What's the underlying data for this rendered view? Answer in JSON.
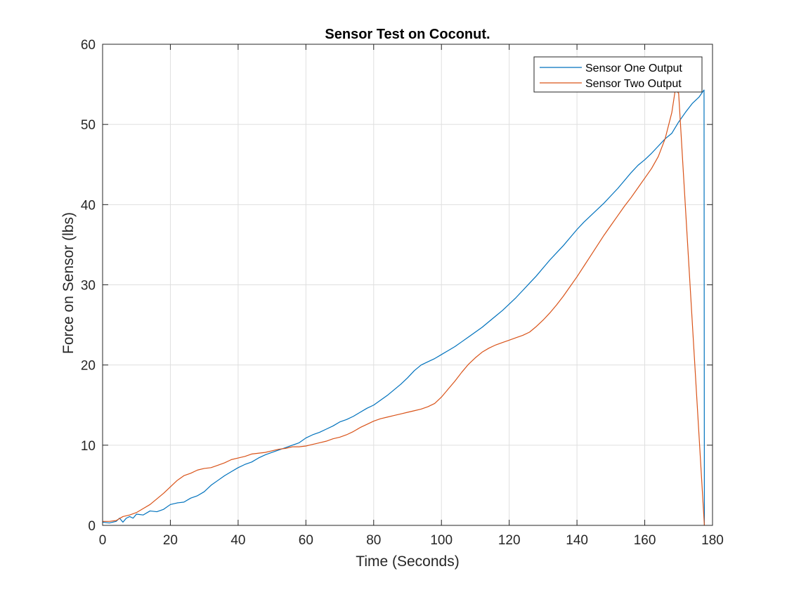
{
  "chart_data": {
    "type": "line",
    "title": "Sensor Test on Coconut.",
    "xlabel": "Time (Seconds)",
    "ylabel": "Force on Sensor (lbs)",
    "xlim": [
      0,
      180
    ],
    "ylim": [
      0,
      60
    ],
    "xticks": [
      0,
      20,
      40,
      60,
      80,
      100,
      120,
      140,
      160,
      180
    ],
    "yticks": [
      0,
      10,
      20,
      30,
      40,
      50,
      60
    ],
    "grid": true,
    "legend_position": "top-right",
    "series": [
      {
        "name": "Sensor One Output",
        "color": "#0072BD",
        "points": [
          [
            0,
            0.4
          ],
          [
            2,
            0.3
          ],
          [
            4,
            0.5
          ],
          [
            5,
            0.9
          ],
          [
            6,
            0.4
          ],
          [
            7,
            0.9
          ],
          [
            8,
            1.1
          ],
          [
            9,
            0.9
          ],
          [
            10,
            1.4
          ],
          [
            12,
            1.3
          ],
          [
            14,
            1.8
          ],
          [
            16,
            1.7
          ],
          [
            18,
            2.0
          ],
          [
            20,
            2.6
          ],
          [
            22,
            2.8
          ],
          [
            24,
            2.9
          ],
          [
            26,
            3.4
          ],
          [
            28,
            3.7
          ],
          [
            30,
            4.2
          ],
          [
            32,
            5.0
          ],
          [
            34,
            5.6
          ],
          [
            36,
            6.2
          ],
          [
            38,
            6.7
          ],
          [
            40,
            7.2
          ],
          [
            42,
            7.6
          ],
          [
            44,
            7.9
          ],
          [
            46,
            8.4
          ],
          [
            48,
            8.8
          ],
          [
            50,
            9.1
          ],
          [
            52,
            9.4
          ],
          [
            54,
            9.7
          ],
          [
            56,
            10.0
          ],
          [
            58,
            10.3
          ],
          [
            60,
            10.9
          ],
          [
            62,
            11.3
          ],
          [
            64,
            11.6
          ],
          [
            66,
            12.0
          ],
          [
            68,
            12.4
          ],
          [
            70,
            12.9
          ],
          [
            72,
            13.2
          ],
          [
            74,
            13.6
          ],
          [
            76,
            14.1
          ],
          [
            78,
            14.6
          ],
          [
            80,
            15.0
          ],
          [
            82,
            15.6
          ],
          [
            84,
            16.2
          ],
          [
            86,
            16.9
          ],
          [
            88,
            17.6
          ],
          [
            90,
            18.4
          ],
          [
            92,
            19.3
          ],
          [
            94,
            20.0
          ],
          [
            96,
            20.4
          ],
          [
            98,
            20.8
          ],
          [
            100,
            21.3
          ],
          [
            102,
            21.8
          ],
          [
            104,
            22.3
          ],
          [
            106,
            22.9
          ],
          [
            108,
            23.5
          ],
          [
            110,
            24.1
          ],
          [
            112,
            24.7
          ],
          [
            114,
            25.4
          ],
          [
            116,
            26.1
          ],
          [
            118,
            26.8
          ],
          [
            120,
            27.6
          ],
          [
            122,
            28.4
          ],
          [
            124,
            29.3
          ],
          [
            126,
            30.2
          ],
          [
            128,
            31.1
          ],
          [
            130,
            32.1
          ],
          [
            132,
            33.1
          ],
          [
            134,
            34.0
          ],
          [
            136,
            34.9
          ],
          [
            138,
            35.9
          ],
          [
            140,
            36.9
          ],
          [
            142,
            37.8
          ],
          [
            144,
            38.6
          ],
          [
            146,
            39.4
          ],
          [
            148,
            40.2
          ],
          [
            150,
            41.1
          ],
          [
            152,
            42.0
          ],
          [
            154,
            43.0
          ],
          [
            156,
            44.0
          ],
          [
            158,
            44.9
          ],
          [
            160,
            45.6
          ],
          [
            162,
            46.4
          ],
          [
            164,
            47.3
          ],
          [
            166,
            48.2
          ],
          [
            168,
            48.9
          ],
          [
            170,
            50.3
          ],
          [
            172,
            51.5
          ],
          [
            174,
            52.6
          ],
          [
            176,
            53.4
          ],
          [
            177.5,
            54.3
          ],
          [
            177.6,
            0
          ]
        ]
      },
      {
        "name": "Sensor Two Output",
        "color": "#D95319",
        "points": [
          [
            0,
            0.5
          ],
          [
            2,
            0.5
          ],
          [
            4,
            0.6
          ],
          [
            6,
            1.1
          ],
          [
            8,
            1.3
          ],
          [
            10,
            1.6
          ],
          [
            12,
            2.1
          ],
          [
            14,
            2.6
          ],
          [
            16,
            3.3
          ],
          [
            18,
            4.0
          ],
          [
            20,
            4.8
          ],
          [
            22,
            5.6
          ],
          [
            24,
            6.2
          ],
          [
            26,
            6.5
          ],
          [
            28,
            6.9
          ],
          [
            30,
            7.1
          ],
          [
            32,
            7.2
          ],
          [
            34,
            7.5
          ],
          [
            36,
            7.8
          ],
          [
            38,
            8.2
          ],
          [
            40,
            8.4
          ],
          [
            42,
            8.6
          ],
          [
            44,
            8.9
          ],
          [
            46,
            9.0
          ],
          [
            48,
            9.1
          ],
          [
            50,
            9.3
          ],
          [
            52,
            9.5
          ],
          [
            54,
            9.6
          ],
          [
            56,
            9.8
          ],
          [
            58,
            9.8
          ],
          [
            60,
            9.9
          ],
          [
            62,
            10.1
          ],
          [
            64,
            10.3
          ],
          [
            66,
            10.5
          ],
          [
            68,
            10.8
          ],
          [
            70,
            11.0
          ],
          [
            72,
            11.3
          ],
          [
            74,
            11.7
          ],
          [
            76,
            12.2
          ],
          [
            78,
            12.6
          ],
          [
            80,
            13.0
          ],
          [
            82,
            13.3
          ],
          [
            84,
            13.5
          ],
          [
            86,
            13.7
          ],
          [
            88,
            13.9
          ],
          [
            90,
            14.1
          ],
          [
            92,
            14.3
          ],
          [
            94,
            14.5
          ],
          [
            96,
            14.8
          ],
          [
            98,
            15.2
          ],
          [
            100,
            16.0
          ],
          [
            102,
            17.0
          ],
          [
            104,
            18.0
          ],
          [
            106,
            19.1
          ],
          [
            108,
            20.1
          ],
          [
            110,
            20.9
          ],
          [
            112,
            21.6
          ],
          [
            114,
            22.1
          ],
          [
            116,
            22.5
          ],
          [
            118,
            22.8
          ],
          [
            120,
            23.1
          ],
          [
            122,
            23.4
          ],
          [
            124,
            23.7
          ],
          [
            126,
            24.1
          ],
          [
            128,
            24.8
          ],
          [
            130,
            25.6
          ],
          [
            132,
            26.5
          ],
          [
            134,
            27.5
          ],
          [
            136,
            28.6
          ],
          [
            138,
            29.8
          ],
          [
            140,
            31.0
          ],
          [
            142,
            32.3
          ],
          [
            144,
            33.6
          ],
          [
            146,
            34.9
          ],
          [
            148,
            36.2
          ],
          [
            150,
            37.4
          ],
          [
            152,
            38.6
          ],
          [
            154,
            39.8
          ],
          [
            156,
            40.9
          ],
          [
            158,
            42.1
          ],
          [
            160,
            43.3
          ],
          [
            162,
            44.5
          ],
          [
            164,
            46.0
          ],
          [
            166,
            48.2
          ],
          [
            168,
            51.5
          ],
          [
            169,
            54.3
          ],
          [
            170,
            53.9
          ],
          [
            177.6,
            0
          ]
        ]
      }
    ]
  }
}
